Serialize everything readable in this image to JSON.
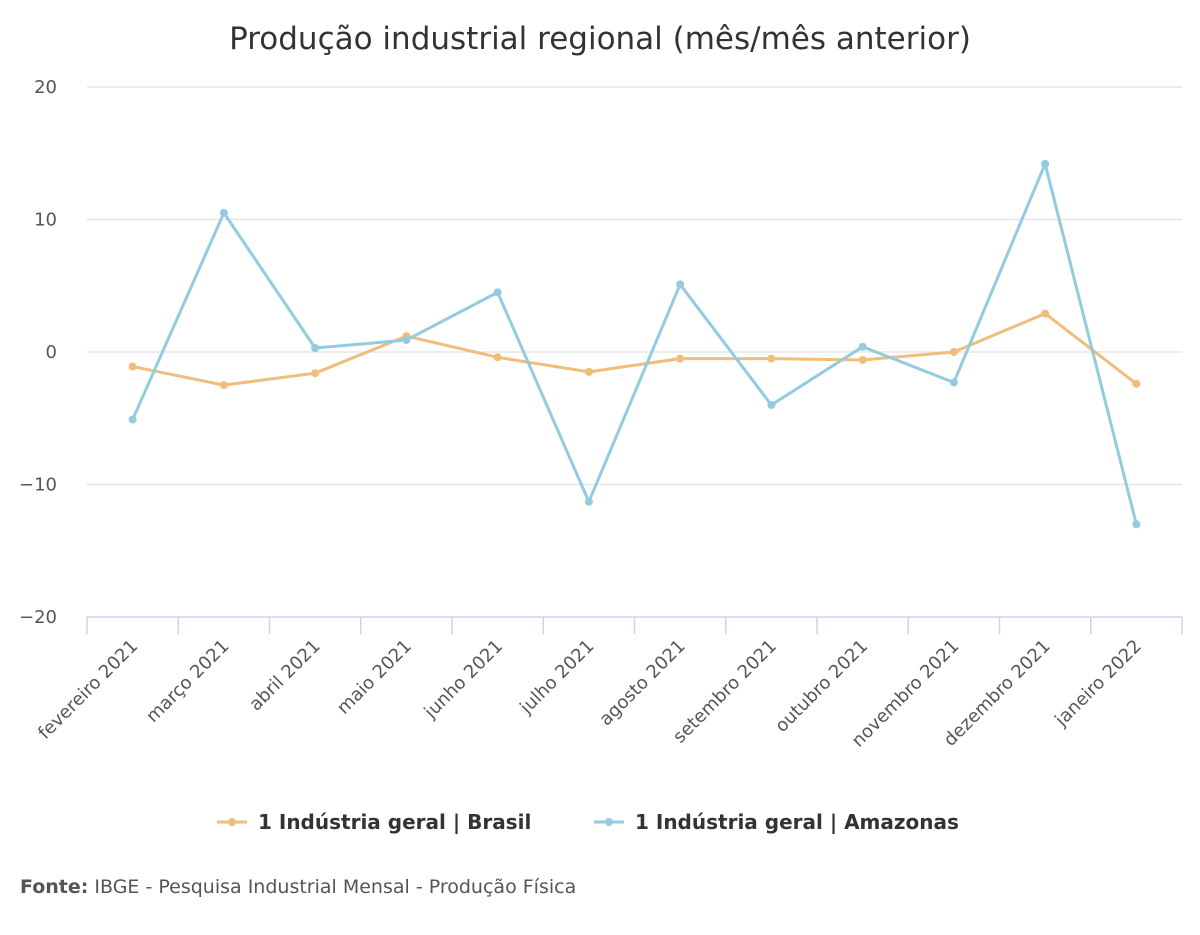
{
  "chart_data": {
    "type": "line",
    "title": "Produção industrial regional (mês/mês anterior)",
    "categories": [
      "fevereiro 2021",
      "março 2021",
      "abril 2021",
      "maio 2021",
      "junho 2021",
      "julho 2021",
      "agosto 2021",
      "setembro 2021",
      "outubro 2021",
      "novembro 2021",
      "dezembro 2021",
      "janeiro 2022"
    ],
    "ylim": [
      -20,
      20
    ],
    "yticks": [
      20,
      10,
      0,
      -10,
      -20
    ],
    "ytick_labels": [
      "20",
      "10",
      "0",
      "−10",
      "−20"
    ],
    "grid": true,
    "legend_position": "bottom-center",
    "series": [
      {
        "name": "1 Indústria geral | Brasil",
        "color": "#f0bd7a",
        "values": [
          -1.1,
          -2.5,
          -1.6,
          1.2,
          -0.4,
          -1.5,
          -0.5,
          -0.5,
          -0.6,
          0.0,
          2.9,
          -2.4
        ]
      },
      {
        "name": "1 Indústria geral | Amazonas",
        "color": "#93cbe0",
        "values": [
          -5.1,
          10.5,
          0.3,
          0.9,
          4.5,
          -11.3,
          5.1,
          -4.0,
          0.4,
          -2.3,
          14.2,
          -13.0
        ]
      }
    ]
  },
  "source": {
    "label": "Fonte:",
    "text": "IBGE - Pesquisa Industrial Mensal - Produção Física"
  }
}
